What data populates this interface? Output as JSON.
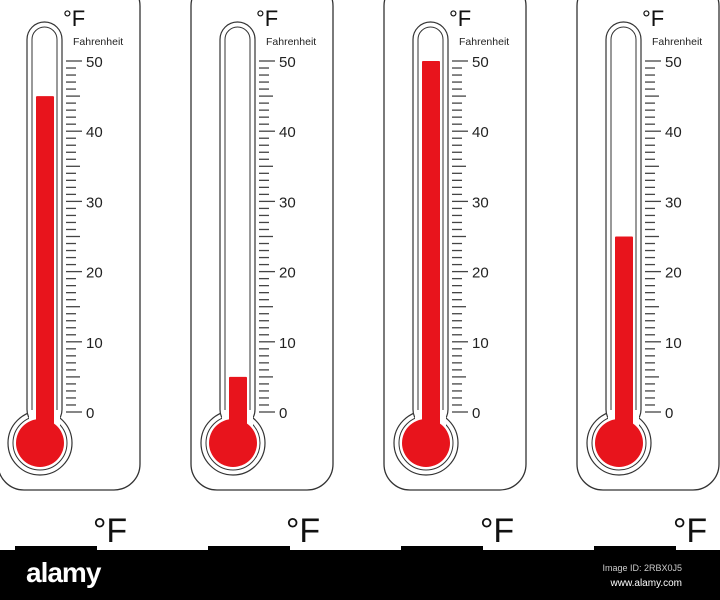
{
  "colors": {
    "mercury": "#e8141c",
    "outline": "#333333",
    "footer": "#000000"
  },
  "scale": {
    "unit": "°F",
    "label": "Fahrenheit",
    "min": 0,
    "max": 50,
    "tick_labels": [
      "50",
      "40",
      "30",
      "20",
      "10",
      "0"
    ]
  },
  "thermometers": [
    {
      "reading": 45
    },
    {
      "reading": 5
    },
    {
      "reading": 50
    },
    {
      "reading": 25
    }
  ],
  "bottom_units": [
    "°F",
    "°F",
    "°F",
    "°F"
  ],
  "footer": {
    "logo": "alamy",
    "image_id": "Image ID: 2RBX0J5",
    "site": "www.alamy.com"
  }
}
